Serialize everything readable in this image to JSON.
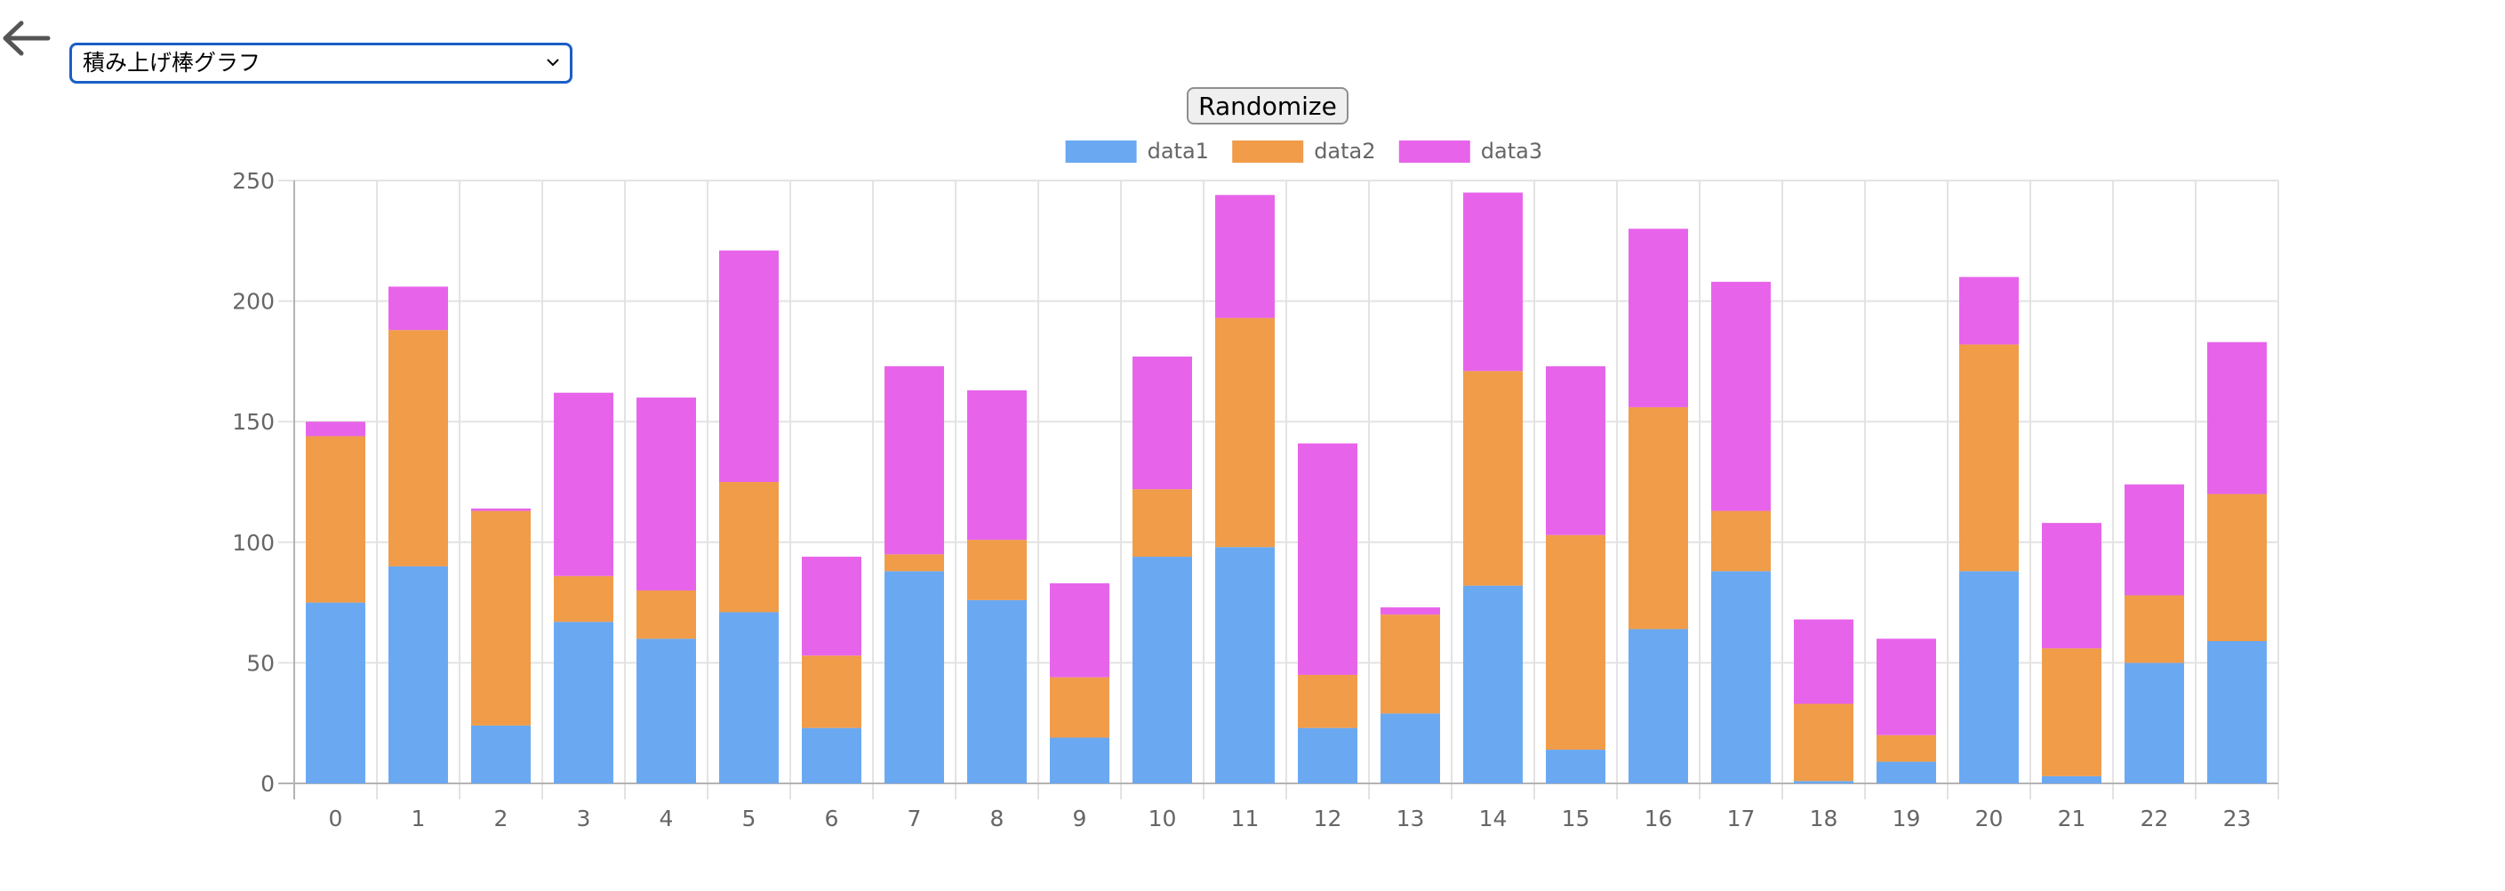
{
  "header": {
    "back_icon": "arrow-left-icon",
    "chart_type_select": {
      "selected": "積み上げ棒グラフ"
    },
    "randomize_label": "Randomize"
  },
  "colors": {
    "data1": "#6aa8f2",
    "data2": "#f09c48",
    "data3": "#e764ea",
    "grid": "#e3e3e3",
    "axis": "#b3b3b3",
    "text": "#666666"
  },
  "chart_data": {
    "type": "bar",
    "stacked": true,
    "categories": [
      "0",
      "1",
      "2",
      "3",
      "4",
      "5",
      "6",
      "7",
      "8",
      "9",
      "10",
      "11",
      "12",
      "13",
      "14",
      "15",
      "16",
      "17",
      "18",
      "19",
      "20",
      "21",
      "22",
      "23"
    ],
    "series": [
      {
        "name": "data1",
        "color": "#6aa8f2",
        "values": [
          75,
          90,
          24,
          67,
          60,
          71,
          23,
          88,
          76,
          19,
          94,
          98,
          23,
          29,
          82,
          14,
          64,
          88,
          1,
          9,
          88,
          3,
          50,
          59
        ]
      },
      {
        "name": "data2",
        "color": "#f09c48",
        "values": [
          69,
          98,
          89,
          19,
          20,
          54,
          30,
          7,
          25,
          25,
          28,
          95,
          22,
          41,
          89,
          89,
          92,
          25,
          32,
          11,
          94,
          53,
          28,
          61
        ]
      },
      {
        "name": "data3",
        "color": "#e764ea",
        "values": [
          6,
          18,
          1,
          76,
          80,
          96,
          41,
          78,
          62,
          39,
          55,
          51,
          96,
          3,
          74,
          70,
          74,
          95,
          35,
          40,
          28,
          52,
          46,
          63
        ]
      }
    ],
    "ylim": [
      0,
      250
    ],
    "yticks": [
      0,
      50,
      100,
      150,
      200,
      250
    ],
    "grid": true,
    "legend": "top"
  }
}
